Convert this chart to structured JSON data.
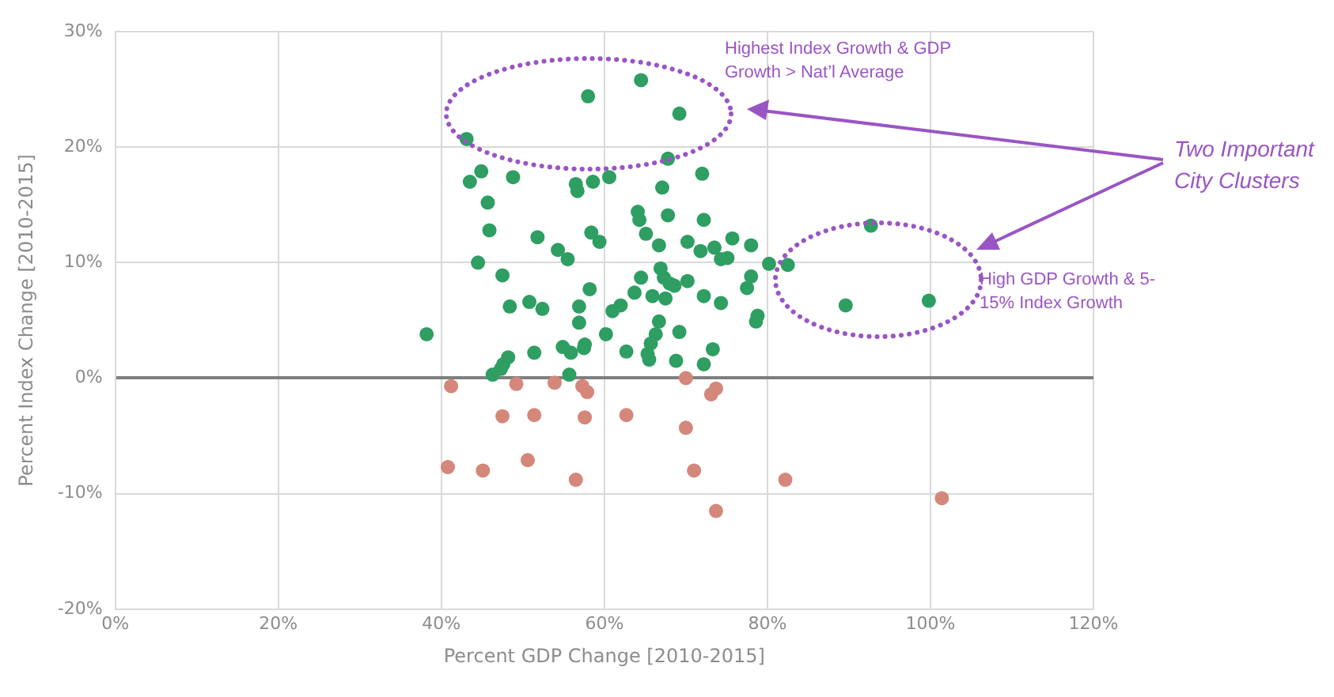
{
  "chart_data": {
    "type": "scatter",
    "xlabel": "Percent GDP Change [2010-2015]",
    "ylabel": "Percent Index Change [2010-2015]",
    "xlim": [
      0,
      120
    ],
    "ylim": [
      -20,
      30
    ],
    "xticks": [
      {
        "value": 0,
        "label": "0%"
      },
      {
        "value": 20,
        "label": "20%"
      },
      {
        "value": 40,
        "label": "40%"
      },
      {
        "value": 60,
        "label": "60%"
      },
      {
        "value": 80,
        "label": "80%"
      },
      {
        "value": 100,
        "label": "100%"
      },
      {
        "value": 120,
        "label": "120%"
      }
    ],
    "yticks": [
      {
        "value": -20,
        "label": "-20%"
      },
      {
        "value": -10,
        "label": "-10%"
      },
      {
        "value": 0,
        "label": "0%"
      },
      {
        "value": 10,
        "label": "10%"
      },
      {
        "value": 20,
        "label": "20%"
      },
      {
        "value": 30,
        "label": "30%"
      }
    ],
    "grid": true,
    "legend": false,
    "marker": "circle",
    "annotations": [
      "Highest  Index Growth & GDP Growth > Nat’l Average",
      "Two Important City Clusters",
      "High GDP Growth & 5-15% Index Growth"
    ],
    "series": [
      {
        "color": "#2e9e62",
        "x": [
          38.2,
          43.1,
          58.0,
          64.5,
          69.2,
          67.8,
          44.9,
          43.5,
          48.8,
          56.5,
          56.7,
          58.6,
          60.6,
          67.1,
          72.0,
          45.7,
          45.9,
          51.8,
          54.3,
          55.5,
          58.4,
          59.4,
          64.1,
          64.3,
          65.1,
          67.8,
          66.7,
          72.2,
          70.2,
          71.8,
          73.5,
          75.7,
          75.1,
          74.3,
          78.0,
          44.5,
          47.5,
          58.2,
          64.5,
          66.9,
          67.3,
          68.0,
          68.6,
          70.2,
          63.7,
          65.9,
          67.5,
          72.2,
          74.3,
          48.4,
          50.8,
          52.4,
          56.9,
          61.0,
          62.0,
          56.9,
          66.7,
          66.3,
          60.2,
          69.2,
          65.7,
          65.3,
          51.4,
          54.9,
          55.9,
          57.6,
          57.5,
          62.7,
          65.5,
          68.8,
          72.2,
          73.3,
          48.2,
          47.6,
          47.3,
          46.3,
          55.7,
          78.0,
          77.5,
          78.8,
          78.6,
          80.2,
          82.5,
          92.7,
          89.6,
          99.8
        ],
        "values": [
          3.8,
          20.7,
          24.4,
          25.8,
          22.9,
          19.0,
          17.9,
          17.0,
          17.4,
          16.8,
          16.2,
          17.0,
          17.4,
          16.5,
          17.7,
          15.2,
          12.8,
          12.2,
          11.1,
          10.3,
          12.6,
          11.8,
          14.4,
          13.7,
          12.5,
          14.1,
          11.5,
          13.7,
          11.8,
          11.0,
          11.3,
          12.1,
          10.4,
          10.3,
          11.5,
          10.0,
          8.9,
          7.7,
          8.7,
          9.5,
          8.7,
          8.2,
          8.0,
          8.4,
          7.4,
          7.1,
          6.9,
          7.1,
          6.5,
          6.2,
          6.6,
          6.0,
          6.2,
          5.8,
          6.3,
          4.8,
          4.9,
          3.8,
          3.8,
          4.0,
          3.0,
          2.1,
          2.2,
          2.7,
          2.2,
          2.9,
          2.6,
          2.3,
          1.6,
          1.5,
          1.2,
          2.5,
          1.8,
          1.2,
          0.8,
          0.3,
          0.3,
          8.8,
          7.8,
          5.4,
          4.9,
          9.9,
          9.8,
          13.2,
          6.3,
          6.7
        ]
      },
      {
        "color": "#d4877a",
        "x": [
          41.2,
          49.2,
          53.9,
          57.3,
          57.9,
          70.0,
          73.7,
          73.1,
          47.5,
          51.4,
          57.6,
          62.7,
          70.0,
          40.8,
          45.1,
          50.6,
          56.5,
          71.0,
          82.2,
          73.7,
          101.4
        ],
        "values": [
          -0.7,
          -0.5,
          -0.4,
          -0.7,
          -1.2,
          0.0,
          -0.9,
          -1.4,
          -3.3,
          -3.2,
          -3.4,
          -3.2,
          -4.3,
          -7.7,
          -8.0,
          -7.1,
          -8.8,
          -8.0,
          -8.8,
          -11.5,
          -10.4
        ]
      }
    ]
  }
}
